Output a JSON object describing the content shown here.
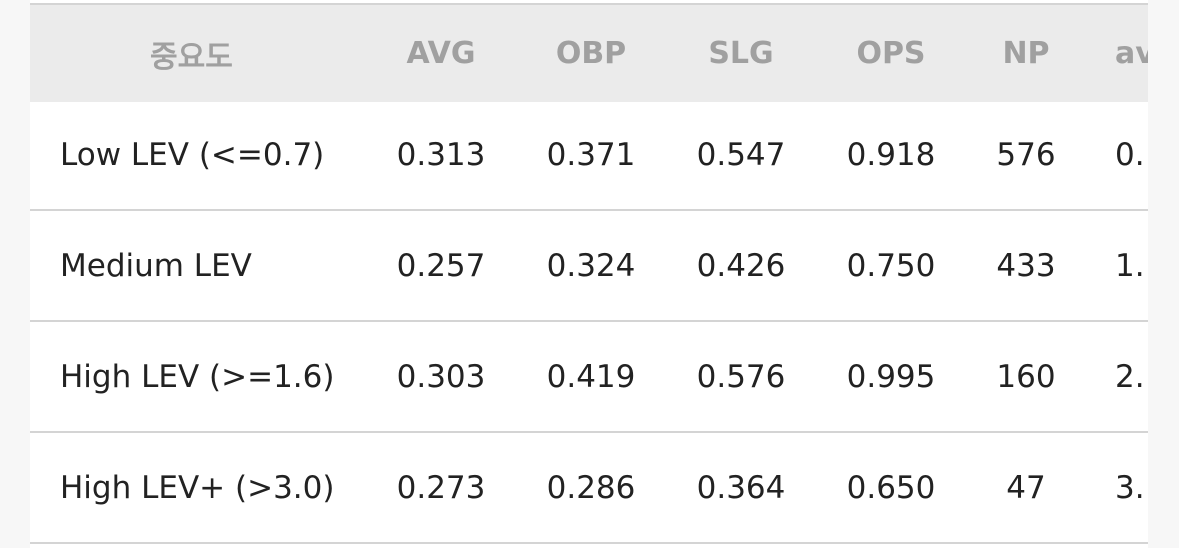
{
  "table": {
    "header": [
      "중요도",
      "AVG",
      "OBP",
      "SLG",
      "OPS",
      "NP",
      "av"
    ],
    "rows": [
      [
        "Low LEV (<=0.7)",
        "0.313",
        "0.371",
        "0.547",
        "0.918",
        "576",
        "0."
      ],
      [
        "Medium LEV",
        "0.257",
        "0.324",
        "0.426",
        "0.750",
        "433",
        "1."
      ],
      [
        "High LEV (>=1.6)",
        "0.303",
        "0.419",
        "0.576",
        "0.995",
        "160",
        "2."
      ],
      [
        "High LEV+ (>3.0)",
        "0.273",
        "0.286",
        "0.364",
        "0.650",
        "47",
        "3."
      ]
    ]
  }
}
